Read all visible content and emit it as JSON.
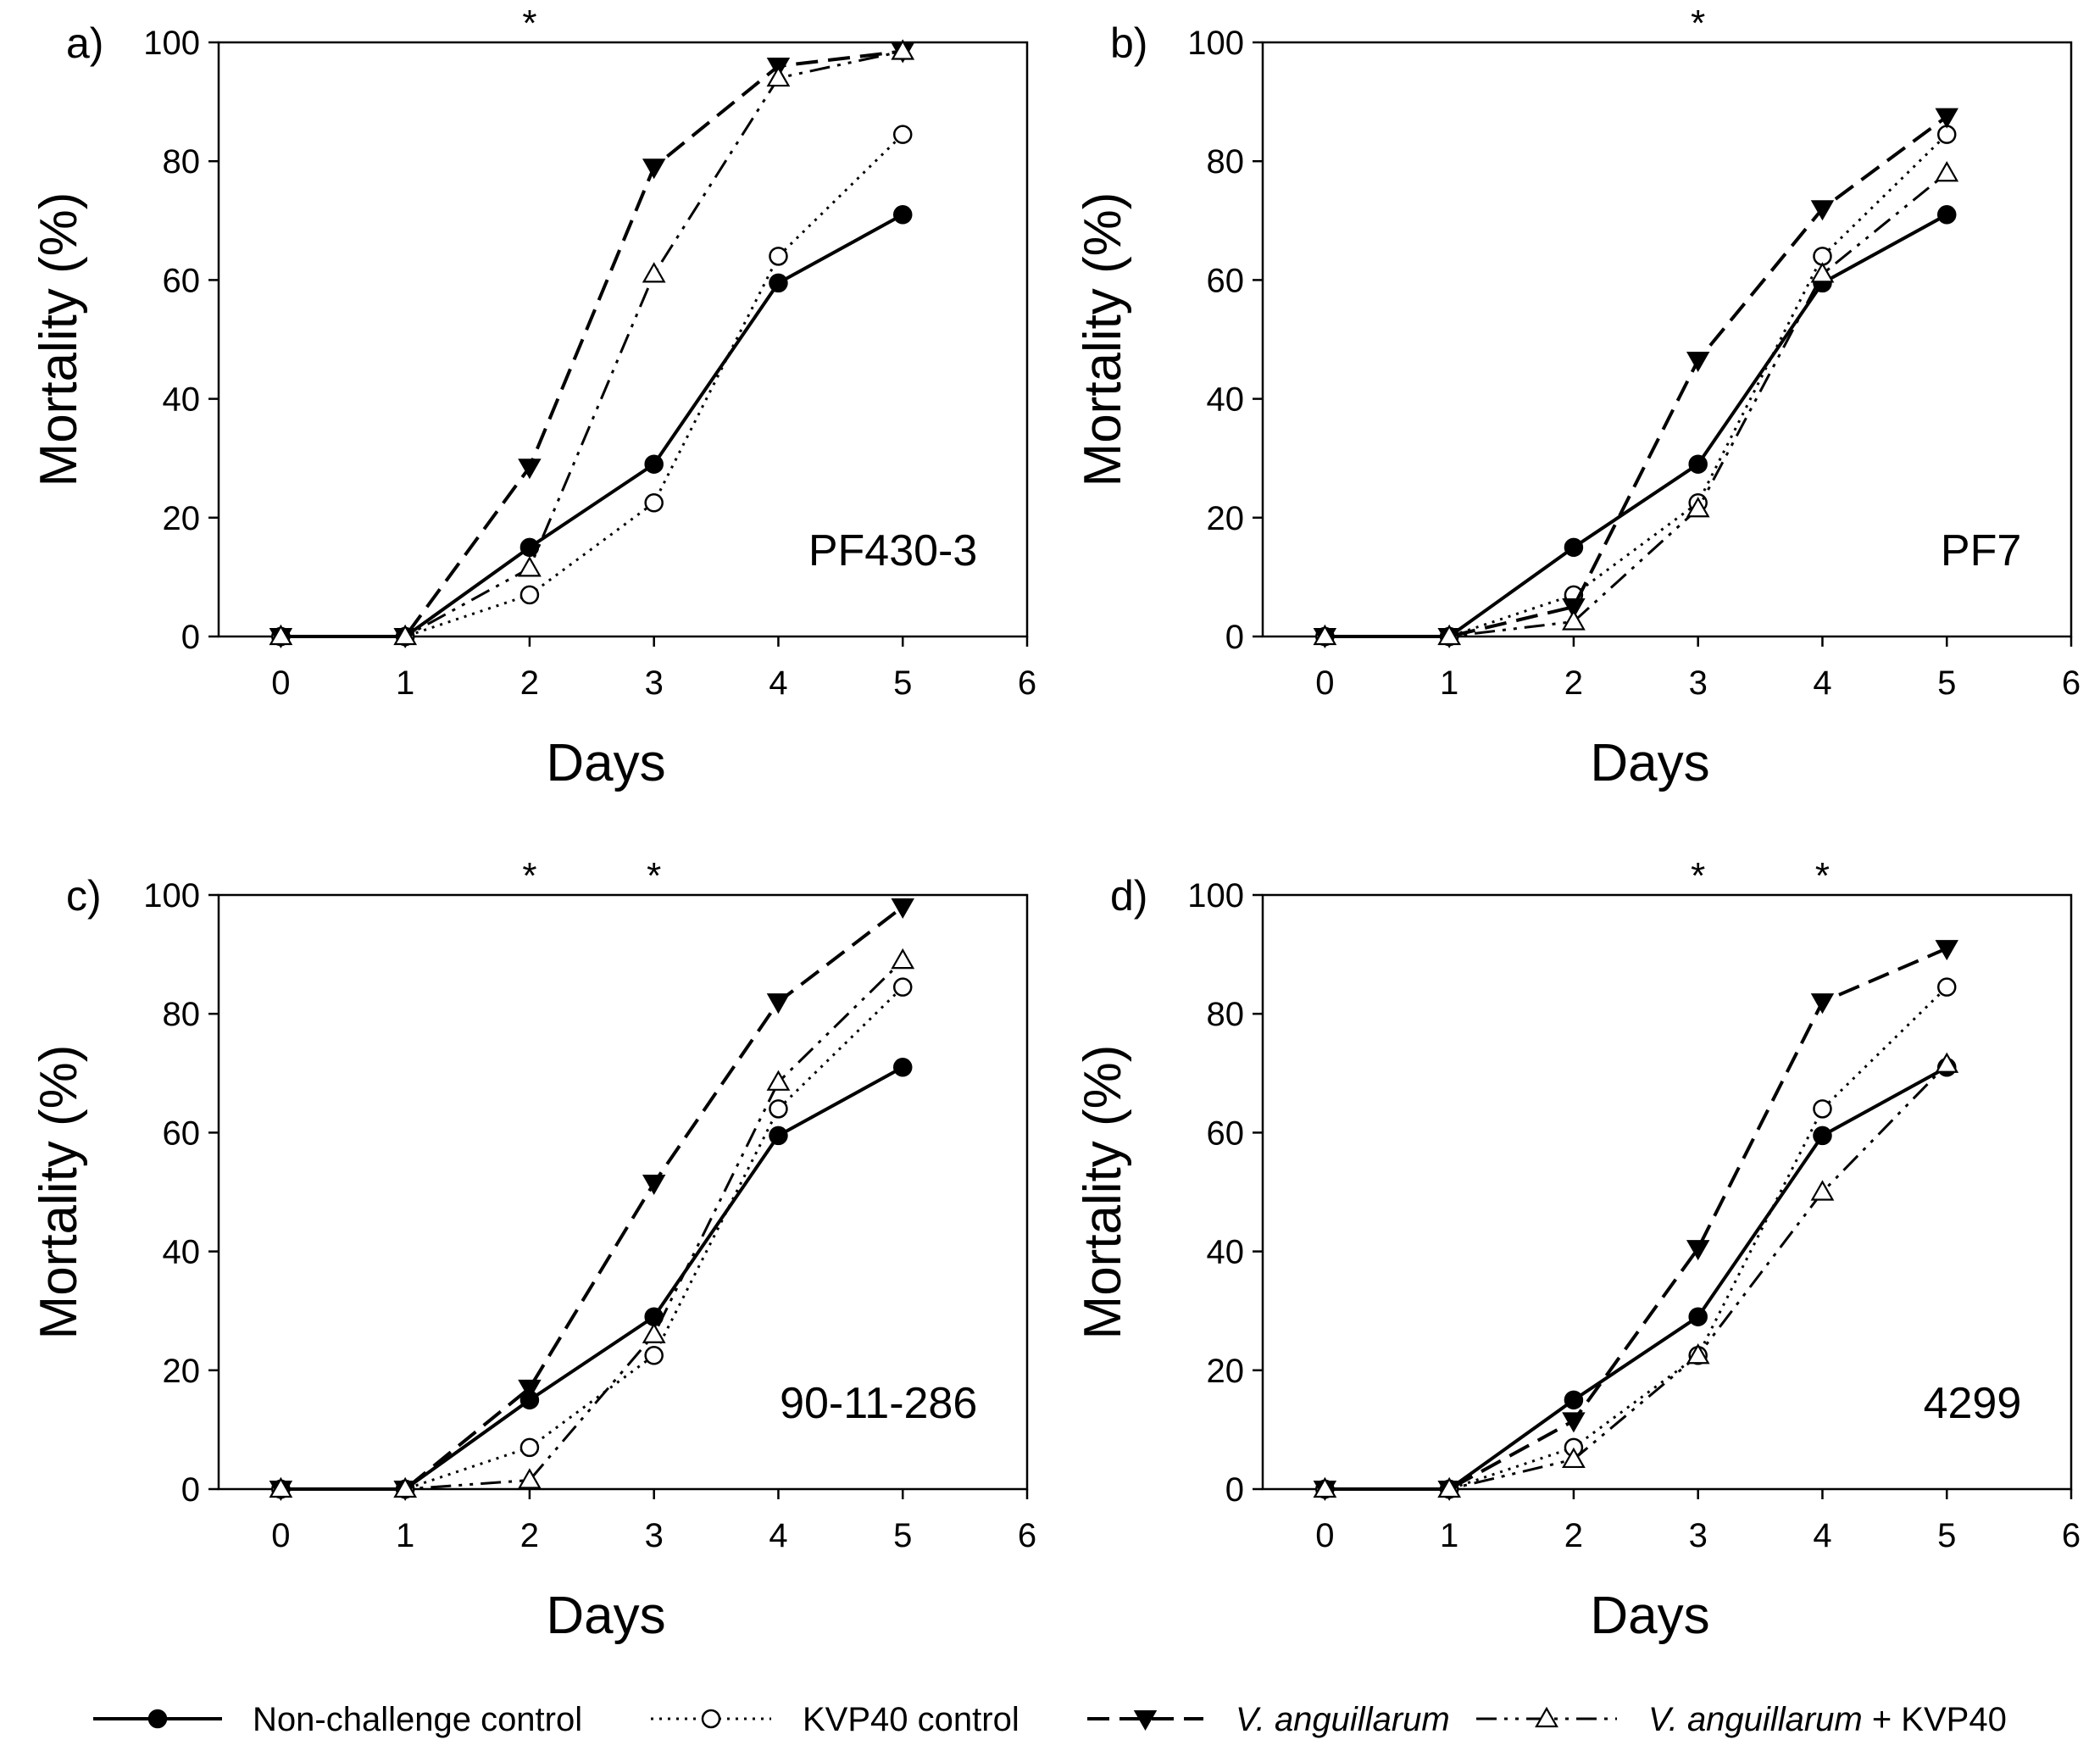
{
  "chart_data": [
    {
      "type": "line",
      "panel_label": "a)",
      "strain": "PF430-3",
      "xlabel": "Days",
      "ylabel": "Mortality (%)",
      "xlim": [
        -0.5,
        6
      ],
      "ylim": [
        0,
        100
      ],
      "xticks": [
        "0",
        "1",
        "2",
        "3",
        "4",
        "5",
        "6"
      ],
      "yticks": [
        "0",
        "20",
        "40",
        "60",
        "80",
        "100"
      ],
      "significance_days": [
        2
      ],
      "significance_symbol": "*",
      "x": [
        0,
        1,
        2,
        3,
        4,
        5
      ],
      "series": [
        {
          "name": "Non-challenge control",
          "values": [
            0,
            0,
            15,
            29,
            59.5,
            71
          ]
        },
        {
          "name": "KVP40 control",
          "values": [
            0,
            0,
            7,
            22.5,
            64,
            84.5
          ]
        },
        {
          "name": "V. anguillarum",
          "values": [
            0,
            0,
            28.5,
            79,
            96,
            98.5
          ]
        },
        {
          "name": "V. anguillarum + KVP40",
          "values": [
            0,
            0,
            11.5,
            61,
            94,
            98.5
          ]
        }
      ]
    },
    {
      "type": "line",
      "panel_label": "b)",
      "strain": "PF7",
      "xlabel": "Days",
      "ylabel": "Mortality (%)",
      "xlim": [
        -0.5,
        6
      ],
      "ylim": [
        0,
        100
      ],
      "xticks": [
        "0",
        "1",
        "2",
        "3",
        "4",
        "5",
        "6"
      ],
      "yticks": [
        "0",
        "20",
        "40",
        "60",
        "80",
        "100"
      ],
      "significance_days": [
        3
      ],
      "significance_symbol": "*",
      "x": [
        0,
        1,
        2,
        3,
        4,
        5
      ],
      "series": [
        {
          "name": "Non-challenge control",
          "values": [
            0,
            0,
            15,
            29,
            59.5,
            71
          ]
        },
        {
          "name": "KVP40 control",
          "values": [
            0,
            0,
            7,
            22.5,
            64,
            84.5
          ]
        },
        {
          "name": "V. anguillarum",
          "values": [
            0,
            0,
            5,
            46.5,
            72,
            87.5
          ]
        },
        {
          "name": "V. anguillarum + KVP40",
          "values": [
            0,
            0,
            2.5,
            21.5,
            61,
            78
          ]
        }
      ]
    },
    {
      "type": "line",
      "panel_label": "c)",
      "strain": "90-11-286",
      "xlabel": "Days",
      "ylabel": "Mortality (%)",
      "xlim": [
        -0.5,
        6
      ],
      "ylim": [
        0,
        100
      ],
      "xticks": [
        "0",
        "1",
        "2",
        "3",
        "4",
        "5",
        "6"
      ],
      "yticks": [
        "0",
        "20",
        "40",
        "60",
        "80",
        "100"
      ],
      "significance_days": [
        2,
        3
      ],
      "significance_symbol": "*",
      "x": [
        0,
        1,
        2,
        3,
        4,
        5
      ],
      "series": [
        {
          "name": "Non-challenge control",
          "values": [
            0,
            0,
            15,
            29,
            59.5,
            71
          ]
        },
        {
          "name": "KVP40 control",
          "values": [
            0,
            0,
            7,
            22.5,
            64,
            84.5
          ]
        },
        {
          "name": "V. anguillarum",
          "values": [
            0,
            0,
            17,
            51.5,
            82,
            98
          ]
        },
        {
          "name": "V. anguillarum + KVP40",
          "values": [
            0,
            0,
            1.5,
            26,
            68.5,
            89
          ]
        }
      ]
    },
    {
      "type": "line",
      "panel_label": "d)",
      "strain": "4299",
      "xlabel": "Days",
      "ylabel": "Mortality (%)",
      "xlim": [
        -0.5,
        6
      ],
      "ylim": [
        0,
        100
      ],
      "xticks": [
        "0",
        "1",
        "2",
        "3",
        "4",
        "5",
        "6"
      ],
      "yticks": [
        "0",
        "20",
        "40",
        "60",
        "80",
        "100"
      ],
      "significance_days": [
        3,
        4
      ],
      "significance_symbol": "*",
      "x": [
        0,
        1,
        2,
        3,
        4,
        5
      ],
      "series": [
        {
          "name": "Non-challenge control",
          "values": [
            0,
            0,
            15,
            29,
            59.5,
            71
          ]
        },
        {
          "name": "KVP40 control",
          "values": [
            0,
            0,
            7,
            22.5,
            64,
            84.5
          ]
        },
        {
          "name": "V. anguillarum",
          "values": [
            0,
            0,
            11.5,
            40.5,
            82,
            91
          ]
        },
        {
          "name": "V. anguillarum + KVP40",
          "values": [
            0,
            0,
            5,
            22.5,
            50,
            71.5
          ]
        }
      ]
    }
  ],
  "legend": [
    {
      "label": "Non-challenge control",
      "italic_part": "",
      "suffix": ""
    },
    {
      "label": "KVP40 control",
      "italic_part": "",
      "suffix": ""
    },
    {
      "label": "",
      "italic_part": "V. anguillarum",
      "suffix": ""
    },
    {
      "label": "",
      "italic_part": "V. anguillarum",
      "suffix": " + KVP40"
    }
  ],
  "colors": {
    "line": "#000000",
    "open_fill": "#ffffff",
    "axis": "#000000"
  }
}
